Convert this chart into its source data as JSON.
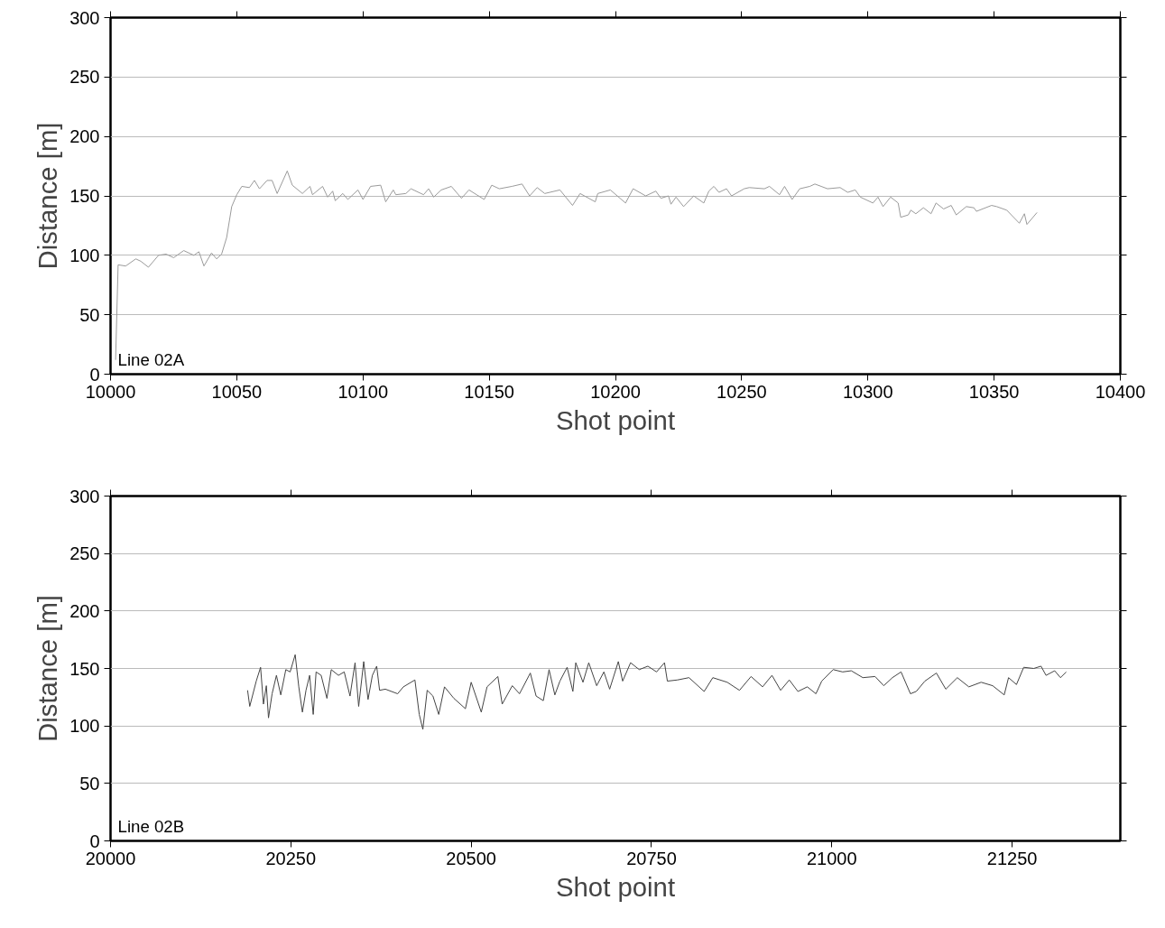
{
  "chart_data": [
    {
      "type": "line",
      "xlabel": "Shot point",
      "ylabel": "Distance [m]",
      "annotations": [
        "Line 02A"
      ],
      "xlim": [
        10000,
        10400
      ],
      "ylim": [
        0,
        300
      ],
      "xticks": [
        10000,
        10050,
        10100,
        10150,
        10200,
        10250,
        10300,
        10350,
        10400
      ],
      "yticks": [
        0,
        50,
        100,
        150,
        200,
        250,
        300
      ],
      "grid": "y",
      "series": [
        {
          "color": "#9a9a9a",
          "x": [
            10002,
            10003,
            10006,
            10010,
            10012,
            10015,
            10019,
            10022,
            10025,
            10029,
            10033,
            10035,
            10037,
            10040,
            10042,
            10044,
            10046,
            10048,
            10050,
            10052,
            10055,
            10057,
            10059,
            10062,
            10064,
            10066,
            10070,
            10072,
            10076,
            10079,
            10080,
            10084,
            10086,
            10088,
            10089,
            10092,
            10094,
            10098,
            10100,
            10103,
            10107,
            10109,
            10112,
            10113,
            10117,
            10119,
            10124,
            10126,
            10128,
            10131,
            10135,
            10139,
            10142,
            10145,
            10148,
            10151,
            10154,
            10159,
            10163,
            10166,
            10169,
            10172,
            10178,
            10183,
            10186,
            10192,
            10193,
            10198,
            10204,
            10207,
            10212,
            10216,
            10218,
            10221,
            10222,
            10224,
            10227,
            10231,
            10235,
            10237,
            10239,
            10241,
            10244,
            10246,
            10251,
            10253,
            10259,
            10261,
            10265,
            10267,
            10270,
            10273,
            10277,
            10279,
            10284,
            10289,
            10292,
            10295,
            10297,
            10302,
            10304,
            10306,
            10309,
            10312,
            10313,
            10316,
            10317,
            10319,
            10322,
            10325,
            10327,
            10330,
            10333,
            10335,
            10339,
            10342,
            10343,
            10349,
            10351,
            10355,
            10360,
            10362,
            10363,
            10365,
            10367
          ],
          "values": [
            12,
            92,
            91,
            97,
            95,
            90,
            100,
            101,
            98,
            104,
            100,
            103,
            91,
            102,
            97,
            101,
            115,
            141,
            151,
            158,
            157,
            163,
            156,
            163,
            163,
            152,
            171,
            159,
            152,
            158,
            151,
            158,
            149,
            154,
            146,
            152,
            147,
            155,
            147,
            158,
            159,
            145,
            155,
            151,
            152,
            156,
            151,
            156,
            149,
            155,
            158,
            148,
            155,
            151,
            147,
            159,
            156,
            158,
            160,
            150,
            157,
            152,
            155,
            142,
            152,
            145,
            152,
            155,
            144,
            156,
            150,
            154,
            148,
            150,
            143,
            149,
            141,
            150,
            144,
            154,
            158,
            153,
            156,
            150,
            156,
            157,
            156,
            158,
            151,
            158,
            147,
            156,
            158,
            160,
            156,
            157,
            153,
            155,
            149,
            144,
            149,
            141,
            149,
            144,
            132,
            134,
            138,
            135,
            140,
            135,
            144,
            139,
            142,
            134,
            141,
            140,
            137,
            142,
            141,
            138,
            127,
            135,
            126,
            131,
            136
          ]
        }
      ]
    },
    {
      "type": "line",
      "xlabel": "Shot point",
      "ylabel": "Distance [m]",
      "annotations": [
        "Line 02B"
      ],
      "xlim": [
        20000,
        21400
      ],
      "ylim": [
        0,
        300
      ],
      "xticks": [
        20000,
        20250,
        20500,
        20750,
        21000,
        21250
      ],
      "yticks": [
        0,
        50,
        100,
        150,
        200,
        250,
        300
      ],
      "grid": "y",
      "series": [
        {
          "color": "#444444",
          "x": [
            20190,
            20193,
            20202,
            20208,
            20212,
            20216,
            20219,
            20224,
            20230,
            20236,
            20243,
            20249,
            20256,
            20261,
            20266,
            20271,
            20276,
            20281,
            20285,
            20292,
            20300,
            20306,
            20316,
            20324,
            20332,
            20339,
            20344,
            20351,
            20357,
            20363,
            20369,
            20373,
            20381,
            20398,
            20406,
            20422,
            20428,
            20433,
            20439,
            20447,
            20455,
            20463,
            20476,
            20492,
            20500,
            20514,
            20522,
            20537,
            20543,
            20557,
            20567,
            20582,
            20590,
            20600,
            20608,
            20616,
            20623,
            20633,
            20641,
            20645,
            20655,
            20663,
            20674,
            20684,
            20692,
            20704,
            20710,
            20721,
            20733,
            20745,
            20757,
            20768,
            20772,
            20786,
            20802,
            20823,
            20835,
            20855,
            20872,
            20888,
            20904,
            20917,
            20929,
            20941,
            20953,
            20966,
            20978,
            20986,
            21002,
            21015,
            21027,
            21043,
            21060,
            21072,
            21084,
            21096,
            21109,
            21117,
            21129,
            21145,
            21158,
            21174,
            21190,
            21207,
            21223,
            21239,
            21245,
            21256,
            21266,
            21280,
            21290,
            21297,
            21309,
            21317,
            21325
          ],
          "values": [
            131,
            117,
            139,
            151,
            119,
            135,
            107,
            128,
            144,
            127,
            149,
            147,
            162,
            134,
            112,
            131,
            144,
            110,
            147,
            144,
            124,
            149,
            144,
            147,
            126,
            155,
            117,
            156,
            123,
            144,
            152,
            131,
            132,
            128,
            134,
            140,
            110,
            97,
            131,
            126,
            110,
            134,
            124,
            115,
            138,
            112,
            134,
            143,
            119,
            135,
            128,
            146,
            126,
            122,
            149,
            127,
            139,
            151,
            130,
            155,
            138,
            155,
            135,
            147,
            132,
            156,
            139,
            155,
            149,
            152,
            147,
            155,
            139,
            140,
            142,
            130,
            142,
            138,
            131,
            143,
            134,
            144,
            131,
            140,
            130,
            134,
            128,
            139,
            149,
            147,
            148,
            142,
            143,
            135,
            142,
            147,
            128,
            130,
            139,
            146,
            132,
            142,
            134,
            138,
            135,
            127,
            142,
            136,
            151,
            150,
            152,
            144,
            148,
            142,
            147
          ]
        }
      ]
    }
  ]
}
